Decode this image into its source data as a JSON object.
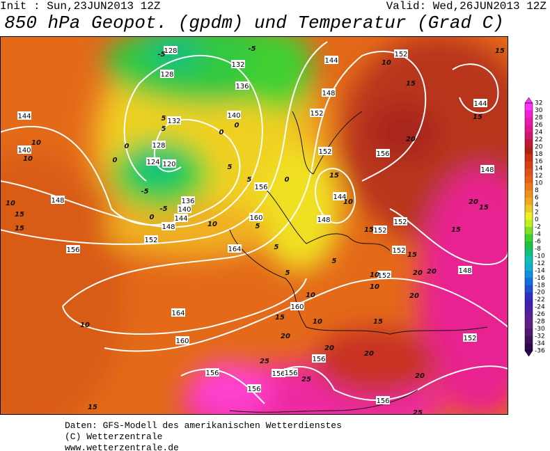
{
  "header": {
    "init": "Init : Sun,23JUN2013 12Z",
    "valid": "Valid: Wed,26JUN2013 12Z",
    "title": "850 hPa Geopot. (gpdm) und Temperatur (Grad C)"
  },
  "map": {
    "geopotential_labels": [
      128,
      128,
      132,
      136,
      140,
      132,
      128,
      124,
      120,
      136,
      140,
      144,
      148,
      152,
      148,
      144,
      140,
      156,
      160,
      164,
      164,
      160,
      160,
      156,
      152,
      148,
      152,
      144,
      152,
      156,
      144,
      148,
      144,
      148,
      152,
      152,
      152,
      148,
      152,
      152,
      156,
      156,
      156,
      156,
      156,
      156
    ],
    "temperature_labels": [
      -5,
      -5,
      0,
      0,
      5,
      5,
      0,
      0,
      -5,
      -5,
      0,
      5,
      5,
      0,
      10,
      10,
      10,
      15,
      15,
      10,
      5,
      15,
      10,
      15,
      5,
      5,
      5,
      10,
      10,
      20,
      20,
      15,
      15,
      20,
      15,
      20,
      10,
      15,
      10,
      15,
      20,
      20,
      10,
      25,
      25,
      20,
      15,
      25,
      20,
      15,
      15,
      10,
      15,
      20
    ]
  },
  "colorbar": {
    "labels": [
      32,
      30,
      28,
      26,
      24,
      22,
      20,
      18,
      16,
      14,
      12,
      10,
      8,
      6,
      4,
      2,
      0,
      -2,
      -4,
      -6,
      -8,
      -10,
      -12,
      -14,
      -16,
      -18,
      -20,
      -22,
      -24,
      -26,
      -28,
      -30,
      -32,
      -34,
      -36
    ],
    "colors": [
      "#ff33ff",
      "#f020d0",
      "#e81ab0",
      "#e01890",
      "#d01868",
      "#c01838",
      "#b02010",
      "#c83010",
      "#d84014",
      "#e05018",
      "#e86018",
      "#ec7818",
      "#f09018",
      "#f0a820",
      "#f0c820",
      "#f0f020",
      "#c0f020",
      "#80e020",
      "#40d030",
      "#20c040",
      "#10c080",
      "#10c0b0",
      "#10b0d0",
      "#1090e0",
      "#1070e0",
      "#2050d0",
      "#3030c0",
      "#4020b0",
      "#5020a0",
      "#602090",
      "#602080",
      "#501870",
      "#401060",
      "#300850"
    ]
  },
  "footer": [
    "Daten: GFS-Modell des amerikanischen Wetterdienstes",
    "(C) Wetterzentrale",
    "www.wetterzentrale.de"
  ]
}
